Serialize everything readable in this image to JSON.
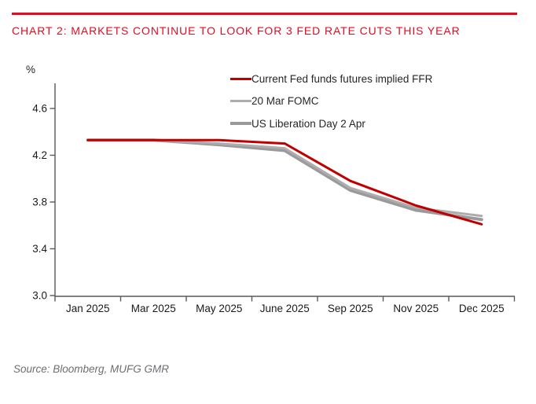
{
  "header": {
    "title": "CHART 2: MARKETS CONTINUE TO LOOK FOR 3 FED RATE CUTS THIS YEAR",
    "accent_color": "#E30B20"
  },
  "chart_data": {
    "type": "line",
    "title": "CHART 2: MARKETS CONTINUE TO LOOK FOR 3 FED RATE CUTS THIS YEAR",
    "ylabel": "%",
    "xlabel": "",
    "categories": [
      "Jan 2025",
      "Mar 2025",
      "May 2025",
      "June 2025",
      "Sep 2025",
      "Nov 2025",
      "Dec 2025"
    ],
    "y_ticks": [
      "4.6",
      "4.2",
      "3.8",
      "3.4",
      "3.0"
    ],
    "ylim": [
      3.0,
      4.78
    ],
    "grid": false,
    "legend_position": "top-right-inside",
    "series": [
      {
        "name": "Current Fed funds futures implied FFR",
        "color": "#C00000",
        "width": 3,
        "values": [
          4.33,
          4.33,
          4.33,
          4.3,
          3.98,
          3.77,
          3.61
        ]
      },
      {
        "name": "20 Mar FOMC",
        "color": "#ADADAD",
        "width": 3,
        "values": [
          4.33,
          4.33,
          4.3,
          4.26,
          3.92,
          3.75,
          3.68
        ]
      },
      {
        "name": "US Liberation Day 2 Apr",
        "color": "#9A9A9A",
        "width": 4,
        "values": [
          4.33,
          4.33,
          4.29,
          4.24,
          3.9,
          3.73,
          3.65
        ]
      }
    ]
  },
  "footer": {
    "source": "Source: Bloomberg, MUFG GMR"
  }
}
